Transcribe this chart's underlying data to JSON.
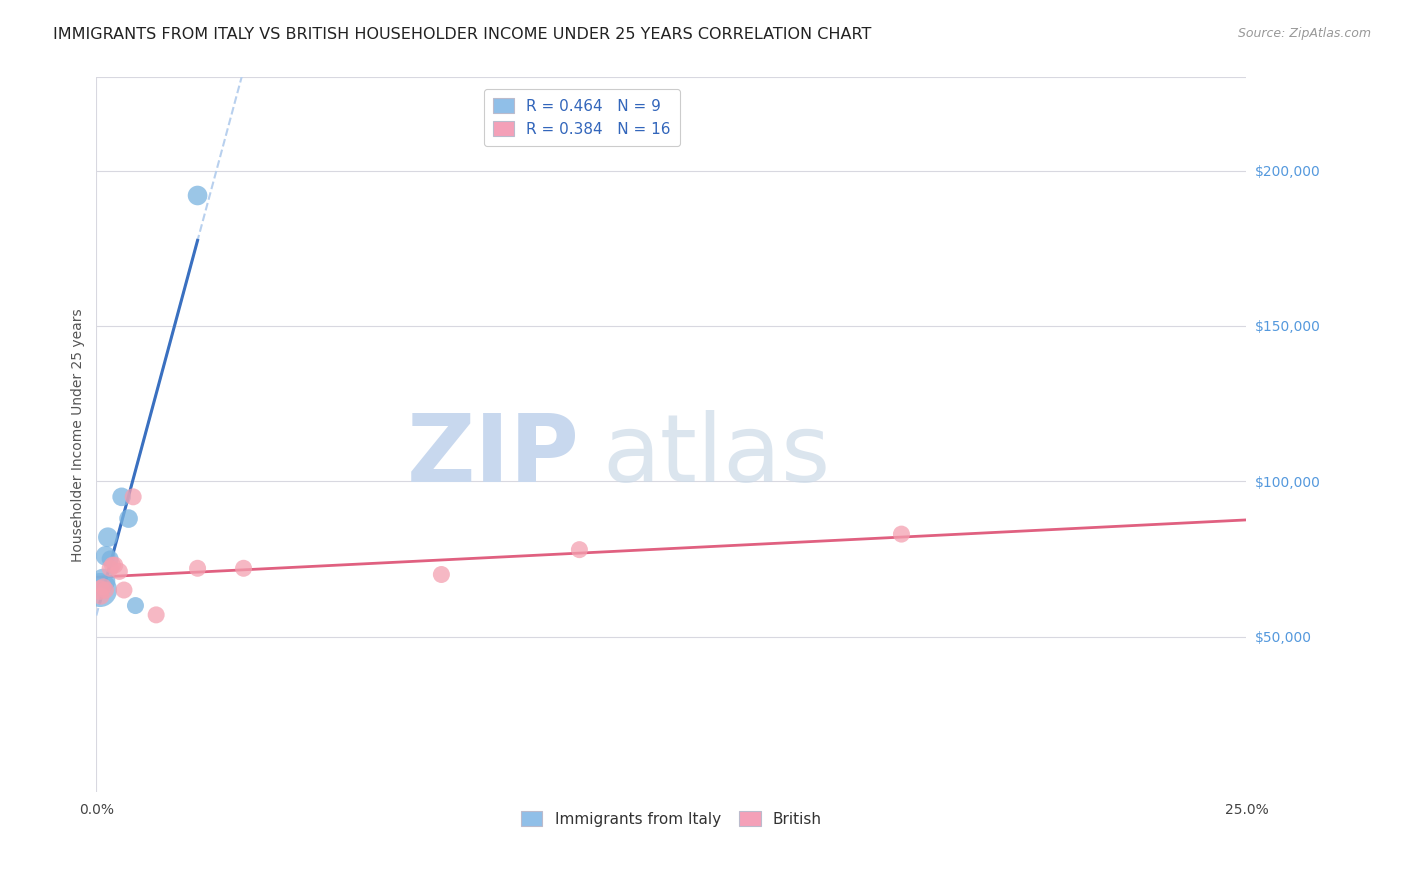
{
  "title": "IMMIGRANTS FROM ITALY VS BRITISH HOUSEHOLDER INCOME UNDER 25 YEARS CORRELATION CHART",
  "source": "Source: ZipAtlas.com",
  "ylabel": "Householder Income Under 25 years",
  "xlim": [
    0.0,
    0.25
  ],
  "ylim": [
    0,
    230000
  ],
  "yticks": [
    50000,
    100000,
    150000,
    200000
  ],
  "ytick_labels": [
    "$50,000",
    "$100,000",
    "$150,000",
    "$200,000"
  ],
  "italy_color": "#7ab3e0",
  "british_color": "#f4a0b0",
  "italy_line_color": "#3a70c0",
  "british_line_color": "#e06080",
  "italy_dashed_color": "#b8d0ee",
  "background_color": "#ffffff",
  "grid_color": "#d8d8e0",
  "legend1_r": "0.464",
  "legend1_n": "9",
  "legend2_r": "0.384",
  "legend2_n": "16",
  "legend_blue_color": "#90bfe8",
  "legend_pink_color": "#f4a0b8",
  "italy_scatter_x": [
    0.0008,
    0.0015,
    0.002,
    0.0025,
    0.003,
    0.0055,
    0.007,
    0.0085,
    0.022
  ],
  "italy_scatter_y": [
    65000,
    68000,
    76000,
    82000,
    75000,
    95000,
    88000,
    60000,
    192000
  ],
  "italy_scatter_s": [
    600,
    300,
    200,
    200,
    150,
    180,
    180,
    150,
    200
  ],
  "british_scatter_x": [
    0.0008,
    0.001,
    0.0015,
    0.002,
    0.003,
    0.0035,
    0.004,
    0.005,
    0.006,
    0.008,
    0.013,
    0.022,
    0.032,
    0.075,
    0.105,
    0.175
  ],
  "british_scatter_y": [
    65000,
    63000,
    66000,
    65000,
    72000,
    73000,
    73000,
    71000,
    65000,
    95000,
    57000,
    72000,
    72000,
    70000,
    78000,
    83000
  ],
  "british_scatter_s": [
    200,
    150,
    150,
    150,
    150,
    150,
    150,
    150,
    150,
    150,
    150,
    150,
    150,
    150,
    150,
    150
  ],
  "title_fontsize": 11.5,
  "axis_label_fontsize": 10,
  "tick_fontsize": 10,
  "source_fontsize": 9,
  "ytick_color": "#5599dd",
  "axis_color": "#cccccc",
  "title_color": "#222222",
  "ylabel_color": "#555555",
  "source_color": "#999999",
  "bottom_label_color": "#333333"
}
